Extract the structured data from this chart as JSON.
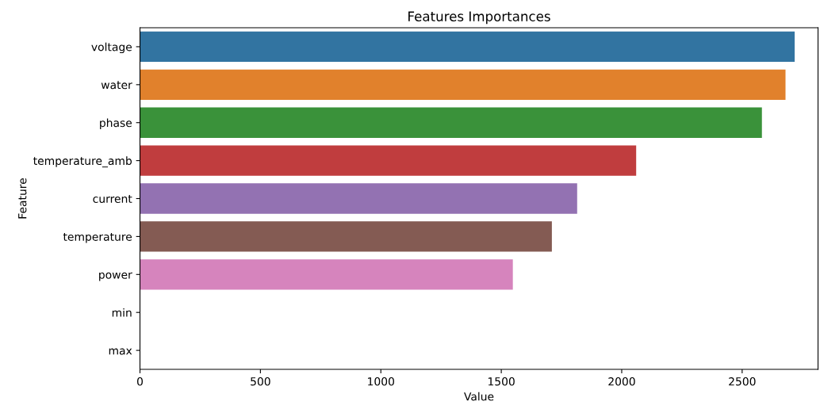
{
  "chart_data": {
    "type": "bar",
    "orientation": "horizontal",
    "title": "Features Importances",
    "xlabel": "Value",
    "ylabel": "Feature",
    "categories": [
      "voltage",
      "water",
      "phase",
      "temperature_amb",
      "current",
      "temperature",
      "power",
      "min",
      "max"
    ],
    "values": [
      2718,
      2680,
      2582,
      2060,
      1815,
      1710,
      1548,
      0,
      0
    ],
    "colors": [
      "#3274a1",
      "#e1812c",
      "#3a923a",
      "#c03d3e",
      "#9372b2",
      "#845b53",
      "#d684bd",
      "#7f7f7f",
      "#a9aa35"
    ],
    "xlim": [
      0,
      2815
    ],
    "xticks": [
      0,
      500,
      1000,
      1500,
      2000,
      2500
    ],
    "grid": false,
    "legend": false
  }
}
